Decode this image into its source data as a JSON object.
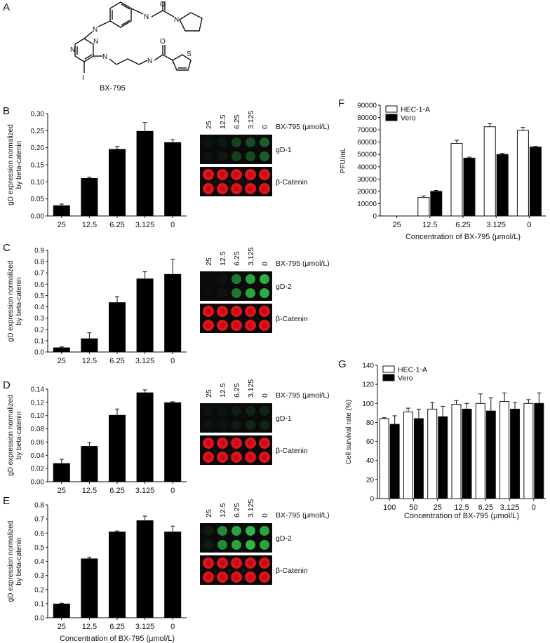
{
  "panel_a": {
    "letter": "A",
    "compound_name": "BX-795",
    "atoms": {
      "N": "N",
      "O": "O",
      "S": "S",
      "I": "I"
    }
  },
  "blot_text": {
    "treatment": "BX-795 (μmol/L)",
    "concentrations": [
      "25",
      "12.5",
      "6.25",
      "3.125",
      "0"
    ],
    "gd1": "gD-1",
    "gd2": "gD-2",
    "catenin": "β-Catenin"
  },
  "panel_labels": {
    "B": "B",
    "C": "C",
    "D": "D",
    "E": "E",
    "F": "F",
    "G": "G"
  },
  "colors": {
    "bar": "#000000",
    "bar_white": "#ffffff",
    "blot_bg": "#0b0b0b",
    "green": "#2fbf4a",
    "red": "#e0141c"
  },
  "chart_data": [
    {
      "id": "B",
      "type": "bar",
      "categories": [
        "25",
        "12.5",
        "6.25",
        "3.125",
        "0"
      ],
      "values": [
        0.031,
        0.111,
        0.196,
        0.249,
        0.216
      ],
      "errors": [
        0.004,
        0.003,
        0.008,
        0.025,
        0.008
      ],
      "ylabel": "gD expression normalized by beta-catenin",
      "ylim": [
        0,
        0.3
      ],
      "yticks": [
        "0.00",
        "0.05",
        "0.10",
        "0.15",
        "0.20",
        "0.25",
        "0.30"
      ],
      "xlabel": ""
    },
    {
      "id": "C",
      "type": "bar",
      "categories": [
        "25",
        "12.5",
        "6.25",
        "3.125",
        "0"
      ],
      "values": [
        0.04,
        0.12,
        0.44,
        0.65,
        0.69
      ],
      "errors": [
        0.005,
        0.05,
        0.05,
        0.06,
        0.13
      ],
      "ylabel": "gD expression normalized by beta-catenin",
      "ylim": [
        0,
        0.9
      ],
      "yticks": [
        "0.0",
        "0.1",
        "0.2",
        "0.3",
        "0.4",
        "0.5",
        "0.6",
        "0.7",
        "0.8",
        "0.9"
      ],
      "xlabel": ""
    },
    {
      "id": "D",
      "type": "bar",
      "categories": [
        "25",
        "12.5",
        "6.25",
        "3.125",
        "0"
      ],
      "values": [
        0.028,
        0.054,
        0.101,
        0.135,
        0.12
      ],
      "errors": [
        0.006,
        0.005,
        0.009,
        0.004,
        0.001
      ],
      "ylabel": "gD expression normalized by beta-catenin",
      "ylim": [
        0,
        0.14
      ],
      "yticks": [
        "0.00",
        "0.02",
        "0.04",
        "0.06",
        "0.08",
        "0.10",
        "0.12",
        "0.14"
      ],
      "xlabel": ""
    },
    {
      "id": "E",
      "type": "bar",
      "categories": [
        "25",
        "12.5",
        "6.25",
        "3.125",
        "0"
      ],
      "values": [
        0.1,
        0.42,
        0.61,
        0.69,
        0.61
      ],
      "errors": [
        0.003,
        0.01,
        0.005,
        0.03,
        0.04
      ],
      "ylabel": "gD expression normalized by beta-catenin",
      "ylim": [
        0,
        0.8
      ],
      "yticks": [
        "0.0",
        "0.1",
        "0.2",
        "0.3",
        "0.4",
        "0.5",
        "0.6",
        "0.7",
        "0.8"
      ],
      "xlabel": "Concentration of BX-795 (μmol/L)"
    },
    {
      "id": "F",
      "type": "bar",
      "categories": [
        "25",
        "12.5",
        "6.25",
        "3.125",
        "0"
      ],
      "series": [
        {
          "name": "HEC-1-A",
          "values": [
            0,
            15000,
            59000,
            72500,
            69500
          ],
          "errors": [
            0,
            1200,
            2500,
            2500,
            2500
          ]
        },
        {
          "name": "Vero",
          "values": [
            0,
            20000,
            47000,
            50000,
            56000
          ],
          "errors": [
            0,
            800,
            800,
            1000,
            600
          ]
        }
      ],
      "ylabel": "PFU/mL",
      "ylim": [
        0,
        90000
      ],
      "yticks": [
        "0",
        "10000",
        "20000",
        "30000",
        "40000",
        "50000",
        "60000",
        "70000",
        "80000",
        "90000"
      ],
      "xlabel": "Concentration of BX-795 (μmol/L)",
      "legend": "top-left"
    },
    {
      "id": "G",
      "type": "bar",
      "categories": [
        "100",
        "50",
        "25",
        "12.5",
        "6.25",
        "3.125",
        "0"
      ],
      "series": [
        {
          "name": "HEC-1-A",
          "values": [
            84,
            91,
            94,
            99,
            100,
            102,
            100
          ],
          "errors": [
            1,
            4,
            7,
            4,
            10,
            9,
            4
          ]
        },
        {
          "name": "Vero",
          "values": [
            78,
            84,
            86,
            94,
            92,
            94,
            100
          ],
          "errors": [
            9,
            10,
            11,
            6,
            14,
            7,
            11
          ]
        }
      ],
      "ylabel": "Cell survival rate (%)",
      "ylim": [
        0,
        140
      ],
      "yticks": [
        "0",
        "20",
        "40",
        "60",
        "80",
        "100",
        "120",
        "140"
      ],
      "xlabel": "Concentration of BX-795 (μmol/L)",
      "legend": "top-left"
    }
  ]
}
